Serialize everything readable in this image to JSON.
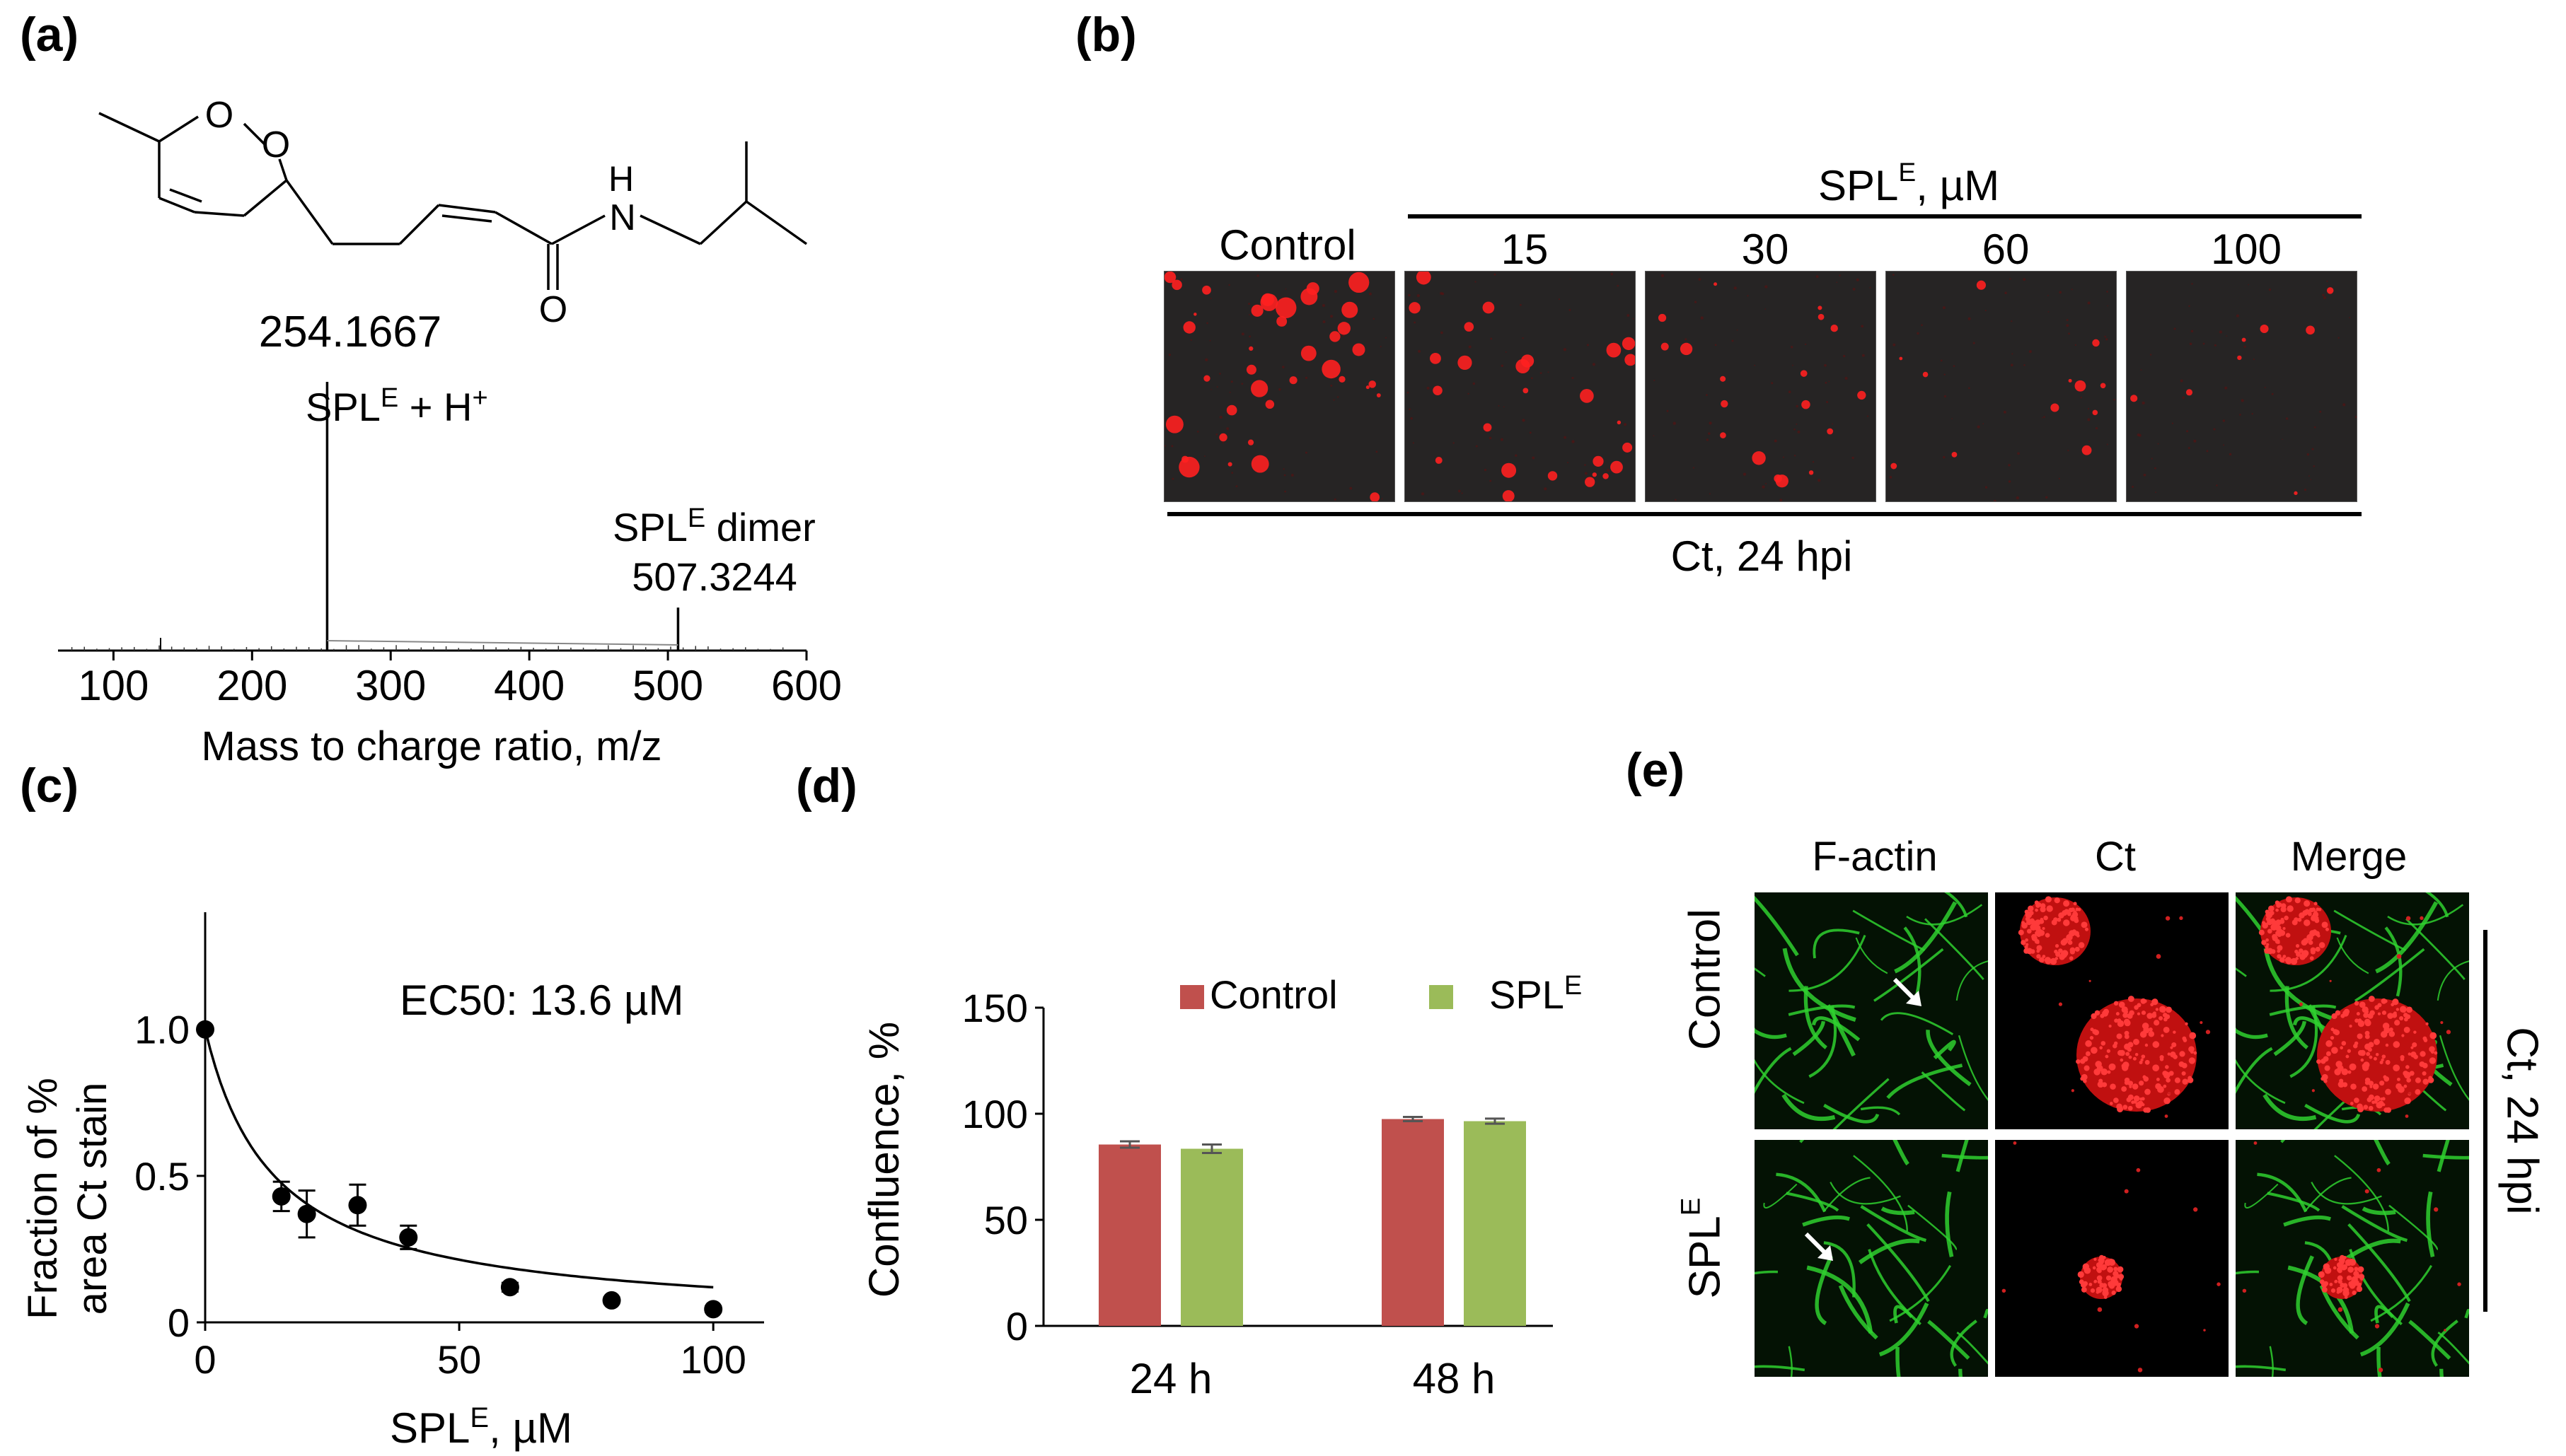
{
  "panels": {
    "a": {
      "label": "(a)",
      "peak_main_mz": "254.1667",
      "peak_main_name": "SPL",
      "peak_main_sup": "E",
      "peak_main_suffix": " + H",
      "peak_main_sup2": "+",
      "peak_dimer_name": "SPL",
      "peak_dimer_sup": "E",
      "peak_dimer_suffix": " dimer",
      "peak_dimer_mz": "507.3244",
      "xticks": [
        "100",
        "200",
        "300",
        "400",
        "500",
        "600"
      ],
      "xlabel": "Mass to charge ratio, m/z",
      "structure_atoms": [
        "O",
        "O",
        "H",
        "N",
        "O"
      ]
    },
    "b": {
      "label": "(b)",
      "header_name": "SPL",
      "header_sup": "E",
      "header_suffix": ", µM",
      "columns": [
        "Control",
        "15",
        "30",
        "60",
        "100"
      ],
      "footer": "Ct, 24 hpi"
    },
    "c": {
      "label": "(c)",
      "ylabel_line1": "Fraction of %",
      "ylabel_line2": "area Ct stain",
      "annotation": "EC50: 13.6 µM",
      "xlabel_name": "SPL",
      "xlabel_sup": "E",
      "xlabel_suffix": ", µM",
      "xticks": [
        "0",
        "50",
        "100"
      ],
      "yticks": [
        "0",
        "0.5",
        "1.0"
      ]
    },
    "d": {
      "label": "(d)",
      "ylabel": "Confluence, %",
      "yticks": [
        "0",
        "50",
        "100",
        "150"
      ],
      "legend": [
        {
          "name": "Control",
          "sup": "",
          "color": "#c0504d"
        },
        {
          "name": "SPL",
          "sup": "E",
          "color": "#9bbb59"
        }
      ]
    },
    "e": {
      "label": "(e)",
      "columns": [
        "F-actin",
        "Ct",
        "Merge"
      ],
      "rows": [
        {
          "name": "Control",
          "sup": ""
        },
        {
          "name": "SPL",
          "sup": "E"
        }
      ],
      "side_label": "Ct, 24 hpi"
    }
  },
  "chart_data": [
    {
      "type": "line",
      "panel": "a",
      "xlabel": "Mass to charge ratio, m/z",
      "xlim": [
        60,
        600
      ],
      "peaks": [
        {
          "x": 254.1667,
          "y": 1.0,
          "label": "254.1667"
        },
        {
          "x": 507.3244,
          "y": 0.16,
          "label": "507.3244"
        }
      ]
    },
    {
      "type": "scatter",
      "panel": "c",
      "xlabel": "SPLE, µM",
      "ylabel": "Fraction of % area Ct stain",
      "xlim": [
        0,
        110
      ],
      "ylim": [
        0,
        1.4
      ],
      "x": [
        0,
        15,
        20,
        30,
        40,
        60,
        80,
        100
      ],
      "y": [
        1.0,
        0.43,
        0.37,
        0.4,
        0.29,
        0.12,
        0.075,
        0.045
      ],
      "yerr": [
        0,
        0.05,
        0.08,
        0.07,
        0.04,
        0.015,
        0.01,
        0.01
      ],
      "fit": {
        "model": "1/(1+x/EC50)",
        "ec50": 13.6
      }
    },
    {
      "type": "bar",
      "panel": "d",
      "ylabel": "Confluence, %",
      "ylim": [
        0,
        150
      ],
      "categories": [
        "24 h",
        "48 h"
      ],
      "series": [
        {
          "name": "Control",
          "values": [
            85.5,
            97.5
          ],
          "errors": [
            1.5,
            1.0
          ]
        },
        {
          "name": "SPLE",
          "values": [
            83.5,
            96.5
          ],
          "errors": [
            2.0,
            1.2
          ]
        }
      ]
    }
  ]
}
